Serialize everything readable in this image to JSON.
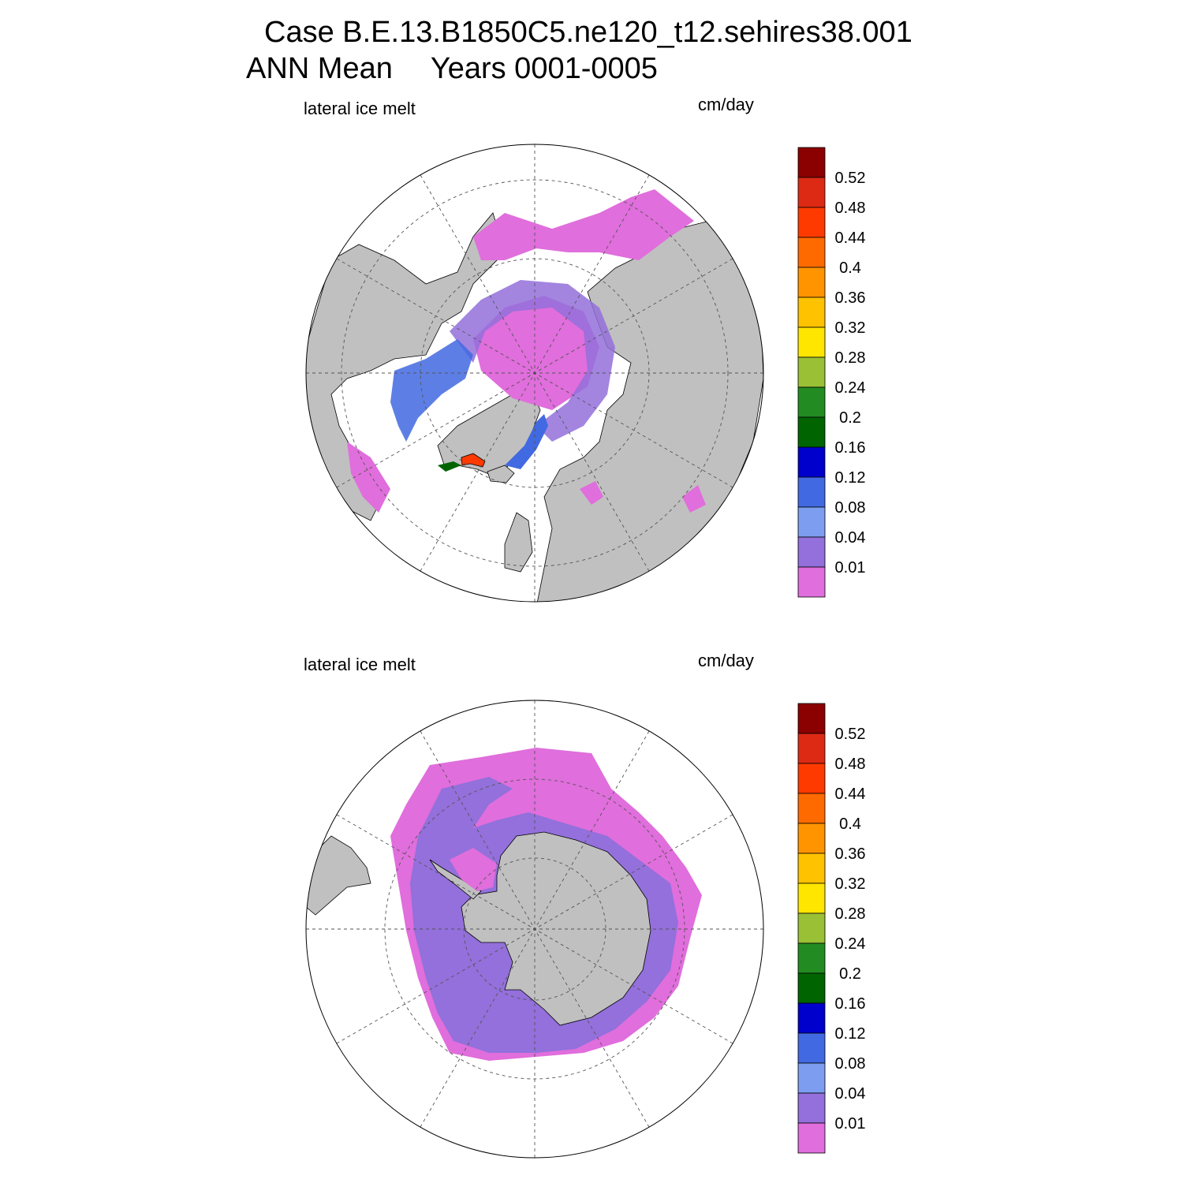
{
  "title_line1": "Case B.E.13.B1850C5.ne120_t12.sehires38.001",
  "title_line2_left": "ANN Mean",
  "title_line2_right": "Years 0001-0005",
  "panels": [
    {
      "name": "arctic",
      "variable_label": "lateral ice melt",
      "units_label": "cm/day"
    },
    {
      "name": "antarctic",
      "variable_label": "lateral ice melt",
      "units_label": "cm/day"
    }
  ],
  "colorbar": {
    "labels": [
      "0.52",
      "0.48",
      "0.44",
      "0.4",
      "0.36",
      "0.32",
      "0.28",
      "0.24",
      "0.2",
      "0.16",
      "0.12",
      "0.08",
      "0.04",
      "0.01"
    ],
    "colors_top_to_bottom": [
      "#8b0000",
      "#dd2a14",
      "#ff3a00",
      "#ff6a00",
      "#ff9400",
      "#ffc200",
      "#ffe600",
      "#9ac035",
      "#228b22",
      "#006400",
      "#0000cd",
      "#4169e1",
      "#7d9ef0",
      "#9370db",
      "#e06edc"
    ]
  },
  "colors": {
    "land": "#c0c0c0",
    "open_ocean": "#ffffff",
    "grid": "#555555"
  }
}
